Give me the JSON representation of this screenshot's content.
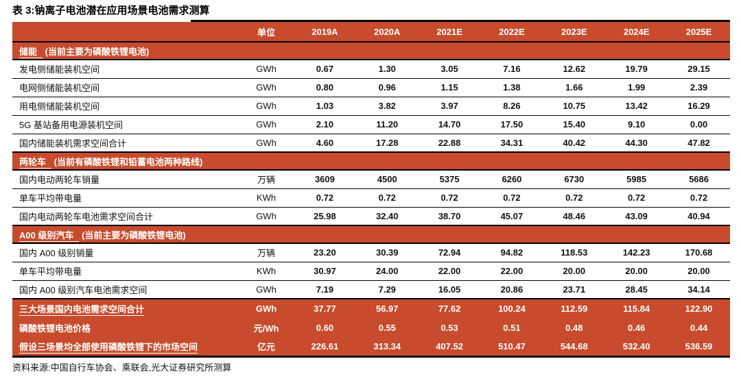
{
  "title": "表 3:钠离子电池潜在应用场景电池需求测算",
  "source_note": "资料来源:中国自行车协会、乘联会,光大证券研究所测算",
  "colors": {
    "accent": "#C74B2C",
    "border": "#000000",
    "header_text": "#FFFFFF",
    "body_text": "#111111"
  },
  "table": {
    "unit_header": "单位",
    "years": [
      "2019A",
      "2020A",
      "2021E",
      "2022E",
      "2023E",
      "2024E",
      "2025E"
    ],
    "sections": [
      {
        "name": "储能",
        "note": "(当前主要为磷酸铁锂电池)",
        "rows": [
          {
            "label": "发电侧储能装机空间",
            "unit": "GWh",
            "values": [
              "0.67",
              "1.30",
              "3.05",
              "7.16",
              "12.62",
              "19.79",
              "29.15"
            ]
          },
          {
            "label": "电网侧储能装机空间",
            "unit": "GWh",
            "values": [
              "0.80",
              "0.96",
              "1.15",
              "1.38",
              "1.66",
              "1.99",
              "2.39"
            ]
          },
          {
            "label": "用电侧储能装机空间",
            "unit": "GWh",
            "values": [
              "1.03",
              "3.82",
              "3.97",
              "8.26",
              "10.75",
              "13.42",
              "16.29"
            ]
          },
          {
            "label": "5G 基站备用电源装机空间",
            "unit": "GWh",
            "values": [
              "2.10",
              "11.20",
              "14.70",
              "17.50",
              "15.40",
              "9.10",
              "0.00"
            ]
          },
          {
            "label": "国内储能装机需求空间合计",
            "unit": "GWh",
            "values": [
              "4.60",
              "17.28",
              "22.88",
              "34.31",
              "40.42",
              "44.30",
              "47.82"
            ]
          }
        ]
      },
      {
        "name": "两轮车",
        "note": "(当前有磷酸铁锂和铅蓄电池两种路线)",
        "rows": [
          {
            "label": "国内电动两轮车销量",
            "unit": "万辆",
            "values": [
              "3609",
              "4500",
              "5375",
              "6260",
              "6730",
              "5985",
              "5686"
            ]
          },
          {
            "label": "单车平均带电量",
            "unit": "KWh",
            "values": [
              "0.72",
              "0.72",
              "0.72",
              "0.72",
              "0.72",
              "0.72",
              "0.72"
            ]
          },
          {
            "label": "国内电动两轮车电池需求空间合计",
            "unit": "GWh",
            "values": [
              "25.98",
              "32.40",
              "38.70",
              "45.07",
              "48.46",
              "43.09",
              "40.94"
            ]
          }
        ]
      },
      {
        "name": "A00 级别汽车",
        "note": "(当前主要为磷酸铁锂电池)",
        "rows": [
          {
            "label": "国内 A00 级别销量",
            "unit": "万辆",
            "values": [
              "23.20",
              "30.39",
              "72.94",
              "94.82",
              "118.53",
              "142.23",
              "170.68"
            ]
          },
          {
            "label": "单车平均带电量",
            "unit": "KWh",
            "values": [
              "30.97",
              "24.00",
              "22.00",
              "22.00",
              "20.00",
              "20.00",
              "20.00"
            ]
          },
          {
            "label": "国内 A00 级别汽车电池需求空间",
            "unit": "GWh",
            "values": [
              "7.19",
              "7.29",
              "16.05",
              "20.86",
              "23.71",
              "28.45",
              "34.14"
            ]
          }
        ]
      }
    ],
    "summary_rows": [
      {
        "label": "三大场景国内电池需求空间合计",
        "underline": true,
        "unit": "GWh",
        "values": [
          "37.77",
          "56.97",
          "77.62",
          "100.24",
          "112.59",
          "115.84",
          "122.90"
        ]
      },
      {
        "label": "磷酸铁锂电池价格",
        "underline": false,
        "unit": "元/Wh",
        "values": [
          "0.60",
          "0.55",
          "0.53",
          "0.51",
          "0.48",
          "0.46",
          "0.44"
        ]
      },
      {
        "label": "假设三场景均全部使用磷酸铁锂下的市场空间",
        "underline": true,
        "unit": "亿元",
        "values": [
          "226.61",
          "313.34",
          "407.52",
          "510.47",
          "544.68",
          "532.40",
          "536.59"
        ]
      }
    ]
  }
}
